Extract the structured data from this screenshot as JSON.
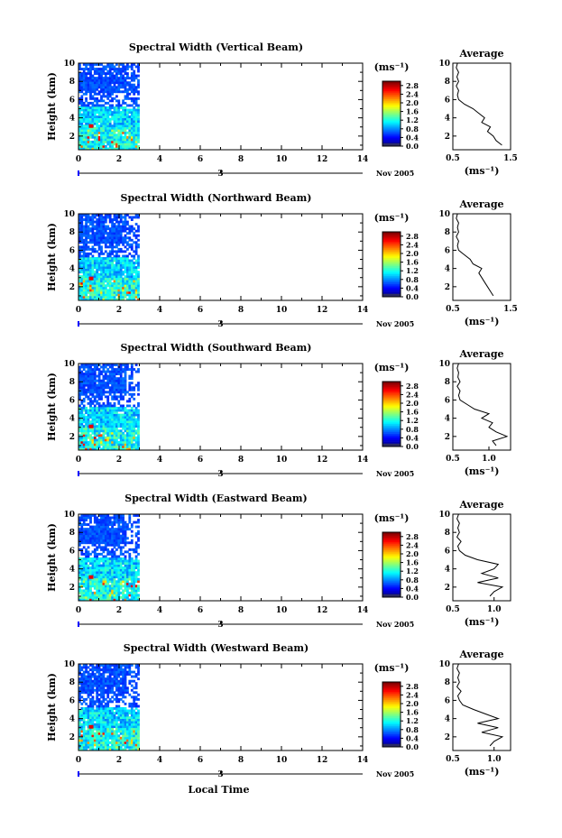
{
  "x_axis_label": "Local Time",
  "chart_data": [
    {
      "type": "heatmap",
      "title": "Spectral Width (Vertical Beam)",
      "ylabel": "Height (km)",
      "x_ticks": [
        "0",
        "2",
        "4",
        "6",
        "8",
        "10",
        "12",
        "14"
      ],
      "y_ticks": [
        "2",
        "4",
        "6",
        "8",
        "10"
      ],
      "xlim": [
        0,
        14
      ],
      "ylim": [
        0.5,
        10
      ],
      "date_label": "3",
      "month_label": "Nov 2005",
      "data_coverage_hours": [
        0,
        3
      ],
      "colorbar": {
        "unit": "(ms⁻¹)",
        "ticks": [
          "0.0",
          "0.4",
          "0.8",
          "1.2",
          "1.6",
          "2.0",
          "2.4",
          "2.8"
        ],
        "range": [
          0,
          3.0
        ]
      },
      "profile": {
        "title": "Average",
        "xlabel": "(ms⁻¹)",
        "x_ticks": [
          "0.5",
          "1.5"
        ],
        "xlim": [
          0.5,
          1.5
        ],
        "y_ticks": [
          "2",
          "4",
          "6",
          "8",
          "10"
        ],
        "heights": [
          1,
          1.5,
          2,
          2.5,
          3,
          3.5,
          4,
          4.5,
          5,
          5.5,
          6,
          6.5,
          7,
          7.5,
          8,
          8.5,
          9,
          9.5,
          10
        ],
        "values": [
          1.35,
          1.25,
          1.2,
          1.1,
          1.15,
          1.0,
          1.05,
          0.95,
          0.85,
          0.7,
          0.6,
          0.58,
          0.6,
          0.56,
          0.6,
          0.57,
          0.6,
          0.56,
          0.58
        ]
      }
    },
    {
      "type": "heatmap",
      "title": "Spectral Width (Northward Beam)",
      "ylabel": "Height (km)",
      "x_ticks": [
        "0",
        "2",
        "4",
        "6",
        "8",
        "10",
        "12",
        "14"
      ],
      "y_ticks": [
        "2",
        "4",
        "6",
        "8",
        "10"
      ],
      "xlim": [
        0,
        14
      ],
      "ylim": [
        0.5,
        10
      ],
      "date_label": "3",
      "month_label": "Nov 2005",
      "data_coverage_hours": [
        0,
        3
      ],
      "colorbar": {
        "unit": "(ms⁻¹)",
        "ticks": [
          "0.0",
          "0.4",
          "0.8",
          "1.2",
          "1.6",
          "2.0",
          "2.4",
          "2.8"
        ],
        "range": [
          0,
          3.0
        ]
      },
      "profile": {
        "title": "Average",
        "xlabel": "(ms⁻¹)",
        "x_ticks": [
          "0.5",
          "1.5"
        ],
        "xlim": [
          0.5,
          1.5
        ],
        "y_ticks": [
          "2",
          "4",
          "6",
          "8",
          "10"
        ],
        "heights": [
          1,
          1.5,
          2,
          2.5,
          3,
          3.5,
          4,
          4.5,
          5,
          5.5,
          6,
          6.5,
          7,
          7.5,
          8,
          8.5,
          9,
          9.5,
          10
        ],
        "values": [
          1.2,
          1.15,
          1.1,
          1.05,
          1.0,
          0.95,
          1.0,
          0.85,
          0.8,
          0.7,
          0.6,
          0.58,
          0.6,
          0.56,
          0.6,
          0.58,
          0.6,
          0.56,
          0.58
        ]
      }
    },
    {
      "type": "heatmap",
      "title": "Spectral Width (Southward Beam)",
      "ylabel": "Height (km)",
      "x_ticks": [
        "0",
        "2",
        "4",
        "6",
        "8",
        "10",
        "12",
        "14"
      ],
      "y_ticks": [
        "2",
        "4",
        "6",
        "8",
        "10"
      ],
      "xlim": [
        0,
        14
      ],
      "ylim": [
        0.5,
        10
      ],
      "date_label": "3",
      "month_label": "Nov 2005",
      "data_coverage_hours": [
        0,
        3
      ],
      "colorbar": {
        "unit": "(ms⁻¹)",
        "ticks": [
          "0.0",
          "0.4",
          "0.8",
          "1.2",
          "1.6",
          "2.0",
          "2.4",
          "2.8"
        ],
        "range": [
          0,
          3.0
        ]
      },
      "profile": {
        "title": "Average",
        "xlabel": "(ms⁻¹)",
        "x_ticks": [
          "0.5",
          "1.0"
        ],
        "xlim": [
          0.5,
          1.3
        ],
        "y_ticks": [
          "2",
          "4",
          "6",
          "8",
          "10"
        ],
        "heights": [
          1,
          1.5,
          2,
          2.5,
          3,
          3.5,
          4,
          4.5,
          5,
          5.5,
          6,
          6.5,
          7,
          7.5,
          8,
          8.5,
          9,
          9.5,
          10
        ],
        "values": [
          1.1,
          1.05,
          1.25,
          1.1,
          1.0,
          1.05,
          0.9,
          1.0,
          0.8,
          0.7,
          0.6,
          0.58,
          0.6,
          0.56,
          0.6,
          0.57,
          0.58,
          0.56,
          0.58
        ]
      }
    },
    {
      "type": "heatmap",
      "title": "Spectral Width (Eastward Beam)",
      "ylabel": "Height (km)",
      "x_ticks": [
        "0",
        "2",
        "4",
        "6",
        "8",
        "10",
        "12",
        "14"
      ],
      "y_ticks": [
        "2",
        "4",
        "6",
        "8",
        "10"
      ],
      "xlim": [
        0,
        14
      ],
      "ylim": [
        0.5,
        10
      ],
      "date_label": "3",
      "month_label": "Nov 2005",
      "data_coverage_hours": [
        0,
        3
      ],
      "colorbar": {
        "unit": "(ms⁻¹)",
        "ticks": [
          "0.0",
          "0.4",
          "0.8",
          "1.2",
          "1.6",
          "2.0",
          "2.4",
          "2.8"
        ],
        "range": [
          0,
          3.0
        ]
      },
      "profile": {
        "title": "Average",
        "xlabel": "(ms⁻¹)",
        "x_ticks": [
          "0.5",
          "1.0"
        ],
        "xlim": [
          0.5,
          1.2
        ],
        "y_ticks": [
          "2",
          "4",
          "6",
          "8",
          "10"
        ],
        "heights": [
          1,
          1.5,
          2,
          2.5,
          3,
          3.5,
          4,
          4.5,
          5,
          5.5,
          6,
          6.5,
          7,
          7.5,
          8,
          8.5,
          9,
          9.5,
          10
        ],
        "values": [
          0.95,
          1.0,
          1.1,
          0.8,
          1.05,
          0.85,
          1.0,
          1.05,
          0.8,
          0.65,
          0.58,
          0.56,
          0.6,
          0.55,
          0.58,
          0.56,
          0.58,
          0.55,
          0.57
        ]
      }
    },
    {
      "type": "heatmap",
      "title": "Spectral Width (Westward Beam)",
      "ylabel": "Height (km)",
      "x_ticks": [
        "0",
        "2",
        "4",
        "6",
        "8",
        "10",
        "12",
        "14"
      ],
      "y_ticks": [
        "2",
        "4",
        "6",
        "8",
        "10"
      ],
      "xlim": [
        0,
        14
      ],
      "ylim": [
        0.5,
        10
      ],
      "date_label": "3",
      "month_label": "Nov 2005",
      "data_coverage_hours": [
        0,
        3
      ],
      "colorbar": {
        "unit": "(ms⁻¹)",
        "ticks": [
          "0.0",
          "0.4",
          "0.8",
          "1.2",
          "1.6",
          "2.0",
          "2.4",
          "2.8"
        ],
        "range": [
          0,
          3.0
        ]
      },
      "profile": {
        "title": "Average",
        "xlabel": "(ms⁻¹)",
        "x_ticks": [
          "0.5",
          "1.0"
        ],
        "xlim": [
          0.5,
          1.2
        ],
        "y_ticks": [
          "2",
          "4",
          "6",
          "8",
          "10"
        ],
        "heights": [
          1,
          1.5,
          2,
          2.5,
          3,
          3.5,
          4,
          4.5,
          5,
          5.5,
          6,
          6.5,
          7,
          7.5,
          8,
          8.5,
          9,
          9.5,
          10
        ],
        "values": [
          0.95,
          1.0,
          1.1,
          0.85,
          1.05,
          0.8,
          1.05,
          0.9,
          0.75,
          0.62,
          0.58,
          0.56,
          0.6,
          0.55,
          0.58,
          0.56,
          0.58,
          0.55,
          0.57
        ]
      }
    }
  ]
}
